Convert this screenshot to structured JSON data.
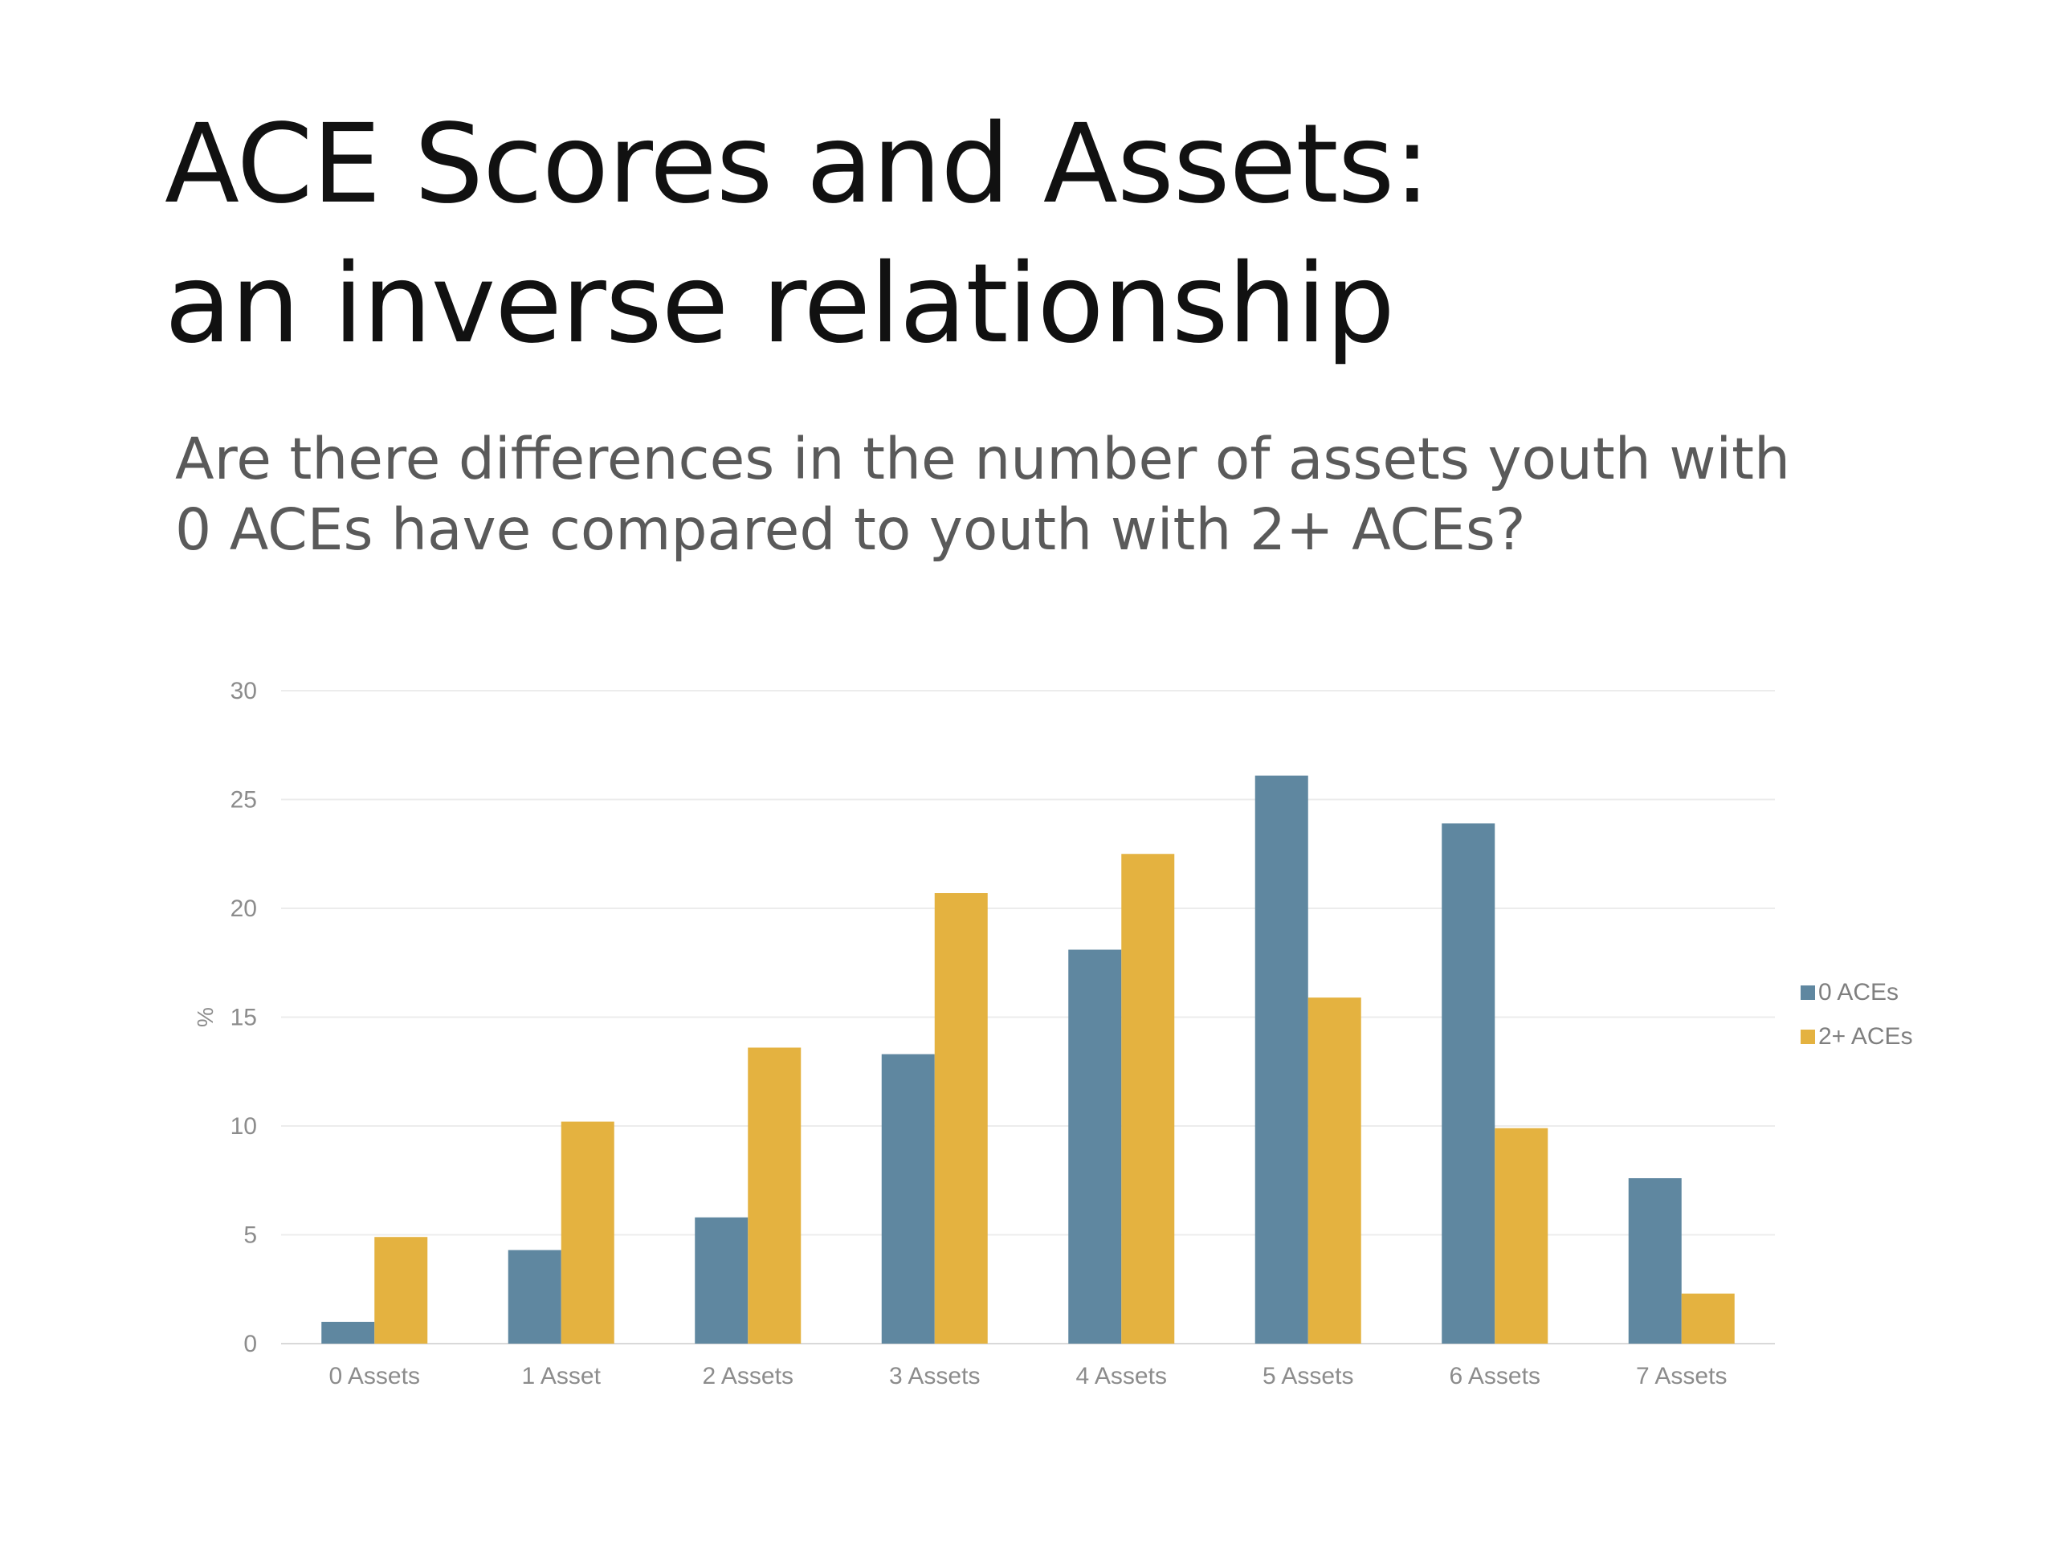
{
  "slide": {
    "title_line1": "ACE Scores and Assets:",
    "title_line2": "an inverse relationship",
    "subtitle_line1": "Are there differences in the number of assets youth with",
    "subtitle_line2": "0 ACEs have compared to youth with 2+ ACEs?"
  },
  "chart_data": {
    "type": "bar",
    "title": "",
    "xlabel": "",
    "ylabel": "%",
    "ylim": [
      0,
      30
    ],
    "yticks": [
      0,
      5,
      10,
      15,
      20,
      25,
      30
    ],
    "grid": true,
    "legend_position": "right",
    "categories": [
      "0 Assets",
      "1 Asset",
      "2 Assets",
      "3 Assets",
      "4 Assets",
      "5 Assets",
      "6 Assets",
      "7 Assets"
    ],
    "series": [
      {
        "name": "0 ACEs",
        "color": "#5F87A0",
        "values": [
          1.0,
          4.3,
          5.8,
          13.3,
          18.1,
          26.1,
          23.9,
          7.6
        ]
      },
      {
        "name": "2+ ACEs",
        "color": "#E4B240",
        "values": [
          4.9,
          10.2,
          13.6,
          20.7,
          22.5,
          15.9,
          9.9,
          2.3
        ]
      }
    ]
  }
}
